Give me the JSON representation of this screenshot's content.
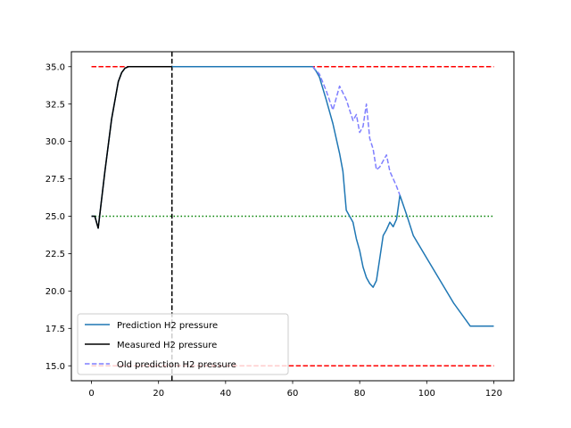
{
  "chart_data": {
    "type": "line",
    "title": "",
    "xlabel": "",
    "ylabel": "",
    "xlim": [
      -6,
      126
    ],
    "ylim": [
      14.0,
      36.0
    ],
    "xticks": [
      0,
      20,
      40,
      60,
      80,
      100,
      120
    ],
    "yticks": [
      15.0,
      17.5,
      20.0,
      22.5,
      25.0,
      27.5,
      30.0,
      32.5,
      35.0
    ],
    "xtick_labels": [
      "0",
      "20",
      "40",
      "60",
      "80",
      "100",
      "120"
    ],
    "ytick_labels": [
      "15.0",
      "17.5",
      "20.0",
      "22.5",
      "25.0",
      "27.5",
      "30.0",
      "32.5",
      "35.0"
    ],
    "grid": false,
    "legend": {
      "position": "lower-left",
      "entries": [
        "Prediction H2 pressure",
        "Measured H2 pressure",
        "Old prediction H2 pressure"
      ]
    },
    "series": [
      {
        "name": "Prediction H2 pressure",
        "color": "#1f77b4",
        "style": "solid",
        "x": [
          0,
          1,
          2,
          4,
          6,
          8,
          9,
          10,
          11,
          12,
          15,
          20,
          24,
          30,
          40,
          50,
          60,
          66,
          67,
          68,
          70,
          72,
          74,
          75,
          76,
          77,
          78,
          79,
          80,
          81,
          82,
          83,
          84,
          85,
          86,
          87,
          88,
          89,
          90,
          91,
          92,
          94,
          96,
          100,
          104,
          108,
          113,
          116,
          120
        ],
        "values": [
          25.0,
          25.0,
          24.2,
          28.0,
          31.5,
          34.0,
          34.6,
          34.9,
          35.0,
          35.0,
          35.0,
          35.0,
          35.0,
          35.0,
          35.0,
          35.0,
          35.0,
          35.0,
          34.7,
          34.3,
          32.8,
          31.2,
          29.2,
          28.0,
          25.4,
          25.0,
          24.6,
          23.5,
          22.7,
          21.6,
          20.9,
          20.5,
          20.25,
          20.7,
          22.2,
          23.7,
          24.1,
          24.6,
          24.3,
          24.8,
          26.4,
          25.1,
          23.7,
          22.2,
          20.7,
          19.2,
          17.65,
          17.65,
          17.65
        ]
      },
      {
        "name": "Measured H2 pressure",
        "color": "#000000",
        "style": "solid",
        "x": [
          0,
          1,
          2,
          4,
          6,
          8,
          9,
          10,
          11,
          12,
          15,
          20,
          24
        ],
        "values": [
          25.0,
          25.0,
          24.2,
          28.0,
          31.5,
          34.0,
          34.6,
          34.9,
          35.0,
          35.0,
          35.0,
          35.0,
          35.0
        ]
      },
      {
        "name": "Old prediction H2 pressure",
        "color": "#7f7fff",
        "style": "dashed",
        "x": [
          66,
          68,
          70,
          72,
          74,
          76,
          78,
          79,
          80,
          81,
          82,
          83,
          84,
          85,
          86,
          87,
          88,
          89,
          90,
          91,
          92
        ],
        "values": [
          35.0,
          34.5,
          33.4,
          32.1,
          33.7,
          32.8,
          31.4,
          31.8,
          30.6,
          31.0,
          32.5,
          30.2,
          29.5,
          28.1,
          28.3,
          28.7,
          29.1,
          28.0,
          27.5,
          27.0,
          26.4
        ]
      }
    ],
    "reference_lines": [
      {
        "orientation": "horizontal",
        "value": 35.0,
        "color": "#ff0000",
        "style": "dashed",
        "from": 0,
        "to": 120
      },
      {
        "orientation": "horizontal",
        "value": 15.0,
        "color": "#ff0000",
        "style": "dashed",
        "from": 0,
        "to": 120
      },
      {
        "orientation": "horizontal",
        "value": 25.0,
        "color": "#008000",
        "style": "dotted",
        "from": 0,
        "to": 120
      },
      {
        "orientation": "vertical",
        "value": 24,
        "color": "#000000",
        "style": "dashed"
      }
    ]
  }
}
